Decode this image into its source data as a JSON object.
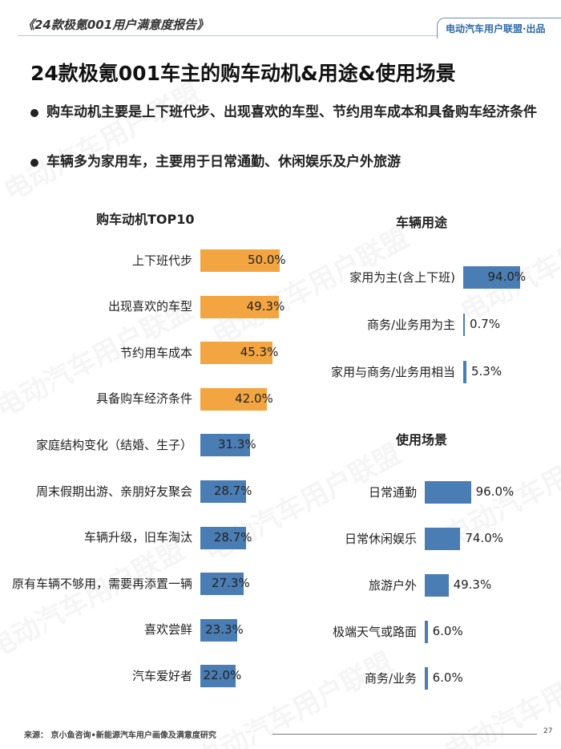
{
  "header": {
    "report_title": "《24款极氪001用户满意度报告》",
    "brand": "电动汽车用户联盟·出品"
  },
  "title": "24款极氪001车主的购车动机&用途&使用场景",
  "bullets": [
    "购车动机主要是上下班代步、出现喜欢的车型、节约用车成本和具备购车经济条件",
    "车辆多为家用车，主要用于日常通勤、休闲娱乐及户外旅游"
  ],
  "colors": {
    "orange": "#F2A541",
    "blue": "#4A7DB3"
  },
  "chart_data": [
    {
      "type": "bar",
      "orientation": "horizontal",
      "title": "购车动机TOP10",
      "categories": [
        "上下班代步",
        "出现喜欢的车型",
        "节约用车成本",
        "具备购车经济条件",
        "家庭结构变化（结婚、生子）",
        "周末假期出游、亲朋好友聚会",
        "车辆升级，旧车淘汰",
        "原有车辆不够用，需要再添置一辆",
        "喜欢尝鲜",
        "汽车爱好者"
      ],
      "values": [
        50.0,
        49.3,
        45.3,
        42.0,
        31.3,
        28.7,
        28.7,
        27.3,
        23.3,
        22.0
      ],
      "labels": [
        "50.0%",
        "49.3%",
        "45.3%",
        "42.0%",
        "31.3%",
        "28.7%",
        "28.7%",
        "27.3%",
        "23.3%",
        "22.0%"
      ],
      "highlight_count": 4
    },
    {
      "type": "bar",
      "orientation": "horizontal",
      "title": "车辆用途",
      "categories": [
        "家用为主(含上下班)",
        "商务/业务用为主",
        "家用与商务/业务用相当"
      ],
      "values": [
        94.0,
        0.7,
        5.3
      ],
      "labels": [
        "94.0%",
        "0.7%",
        "5.3%"
      ]
    },
    {
      "type": "bar",
      "orientation": "horizontal",
      "title": "使用场景",
      "categories": [
        "日常通勤",
        "日常休闲娱乐",
        "旅游户外",
        "极端天气或路面",
        "商务/业务"
      ],
      "values": [
        96.0,
        74.0,
        49.3,
        6.0,
        6.0
      ],
      "labels": [
        "96.0%",
        "74.0%",
        "49.3%",
        "6.0%",
        "6.0%"
      ]
    }
  ],
  "footer": {
    "source": "来源：  京小鱼咨询•新能源汽车用户画像及满意度研究",
    "page": "27",
    "watermark": "电动汽车用户联盟"
  }
}
